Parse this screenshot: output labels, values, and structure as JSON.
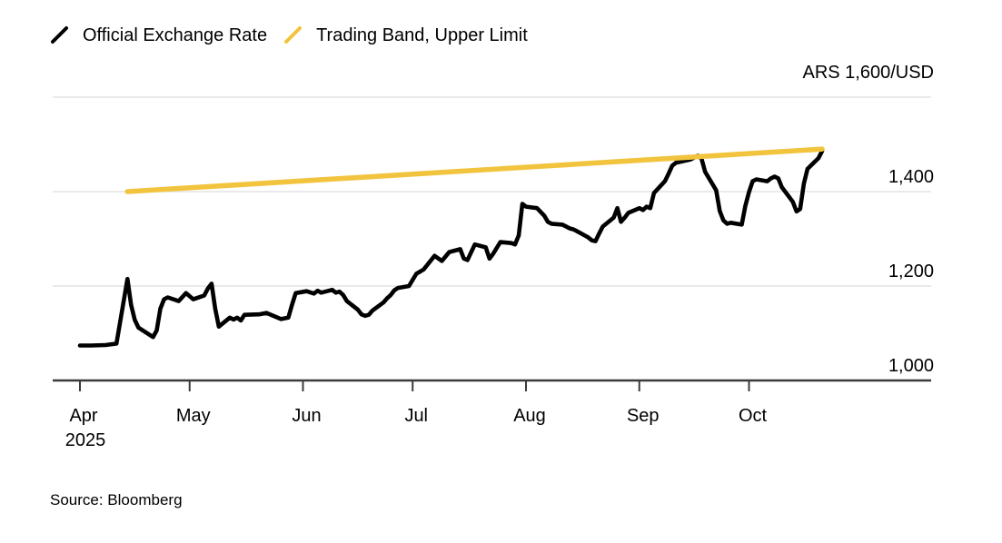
{
  "legend": {
    "items": [
      {
        "label": "Official Exchange Rate",
        "color": "#000000"
      },
      {
        "label": "Trading Band, Upper Limit",
        "color": "#F2C43D"
      }
    ]
  },
  "footer": {
    "source": "Source: Bloomberg"
  },
  "chart_data": {
    "type": "line",
    "title": "",
    "unit_label": "ARS 1,600/USD",
    "grid": true,
    "legend_position": "top-left",
    "x_axis": {
      "range": [
        "2025-04-01",
        "2025-10-21"
      ],
      "tick_dates": [
        "2025-04-01",
        "2025-05-01",
        "2025-06-01",
        "2025-07-01",
        "2025-08-01",
        "2025-09-01",
        "2025-10-01"
      ],
      "tick_labels": [
        "Apr",
        "May",
        "Jun",
        "Jul",
        "Aug",
        "Sep",
        "Oct"
      ],
      "year_label": "2025"
    },
    "y_axis": {
      "range": [
        1000,
        1600
      ],
      "grid_values": [
        1200,
        1400,
        1600
      ],
      "tick_labels": [
        [
          "1,000",
          1000
        ],
        [
          "1,200",
          1200
        ],
        [
          "1,400",
          1400
        ]
      ],
      "unit": "ARS per USD"
    },
    "series": [
      {
        "name": "Official Exchange Rate",
        "color": "#000000",
        "points": [
          [
            "2025-04-01",
            1074
          ],
          [
            "2025-04-04",
            1074
          ],
          [
            "2025-04-08",
            1075
          ],
          [
            "2025-04-11",
            1078
          ],
          [
            "2025-04-14",
            1215
          ],
          [
            "2025-04-15",
            1160
          ],
          [
            "2025-04-16",
            1128
          ],
          [
            "2025-04-17",
            1112
          ],
          [
            "2025-04-21",
            1092
          ],
          [
            "2025-04-22",
            1106
          ],
          [
            "2025-04-23",
            1152
          ],
          [
            "2025-04-24",
            1172
          ],
          [
            "2025-04-25",
            1176
          ],
          [
            "2025-04-28",
            1168
          ],
          [
            "2025-04-30",
            1185
          ],
          [
            "2025-05-02",
            1172
          ],
          [
            "2025-05-05",
            1180
          ],
          [
            "2025-05-06",
            1195
          ],
          [
            "2025-05-07",
            1205
          ],
          [
            "2025-05-08",
            1152
          ],
          [
            "2025-05-09",
            1114
          ],
          [
            "2025-05-12",
            1133
          ],
          [
            "2025-05-13",
            1129
          ],
          [
            "2025-05-14",
            1133
          ],
          [
            "2025-05-15",
            1127
          ],
          [
            "2025-05-16",
            1139
          ],
          [
            "2025-05-20",
            1140
          ],
          [
            "2025-05-22",
            1143
          ],
          [
            "2025-05-26",
            1130
          ],
          [
            "2025-05-28",
            1133
          ],
          [
            "2025-05-29",
            1160
          ],
          [
            "2025-05-30",
            1185
          ],
          [
            "2025-06-02",
            1189
          ],
          [
            "2025-06-04",
            1184
          ],
          [
            "2025-06-05",
            1190
          ],
          [
            "2025-06-06",
            1186
          ],
          [
            "2025-06-09",
            1192
          ],
          [
            "2025-06-10",
            1186
          ],
          [
            "2025-06-11",
            1188
          ],
          [
            "2025-06-12",
            1181
          ],
          [
            "2025-06-13",
            1168
          ],
          [
            "2025-06-16",
            1150
          ],
          [
            "2025-06-17",
            1140
          ],
          [
            "2025-06-18",
            1137
          ],
          [
            "2025-06-19",
            1139
          ],
          [
            "2025-06-20",
            1148
          ],
          [
            "2025-06-23",
            1165
          ],
          [
            "2025-06-24",
            1174
          ],
          [
            "2025-06-25",
            1181
          ],
          [
            "2025-06-26",
            1191
          ],
          [
            "2025-06-27",
            1196
          ],
          [
            "2025-06-30",
            1200
          ],
          [
            "2025-07-02",
            1226
          ],
          [
            "2025-07-04",
            1235
          ],
          [
            "2025-07-07",
            1264
          ],
          [
            "2025-07-09",
            1253
          ],
          [
            "2025-07-11",
            1272
          ],
          [
            "2025-07-14",
            1278
          ],
          [
            "2025-07-15",
            1258
          ],
          [
            "2025-07-16",
            1255
          ],
          [
            "2025-07-18",
            1288
          ],
          [
            "2025-07-21",
            1282
          ],
          [
            "2025-07-22",
            1258
          ],
          [
            "2025-07-23",
            1268
          ],
          [
            "2025-07-25",
            1293
          ],
          [
            "2025-07-28",
            1291
          ],
          [
            "2025-07-29",
            1288
          ],
          [
            "2025-07-30",
            1307
          ],
          [
            "2025-07-31",
            1374
          ],
          [
            "2025-08-01",
            1368
          ],
          [
            "2025-08-04",
            1365
          ],
          [
            "2025-08-06",
            1349
          ],
          [
            "2025-08-07",
            1336
          ],
          [
            "2025-08-08",
            1332
          ],
          [
            "2025-08-11",
            1330
          ],
          [
            "2025-08-13",
            1322
          ],
          [
            "2025-08-14",
            1320
          ],
          [
            "2025-08-15",
            1316
          ],
          [
            "2025-08-18",
            1303
          ],
          [
            "2025-08-19",
            1297
          ],
          [
            "2025-08-20",
            1295
          ],
          [
            "2025-08-21",
            1311
          ],
          [
            "2025-08-22",
            1326
          ],
          [
            "2025-08-25",
            1345
          ],
          [
            "2025-08-26",
            1365
          ],
          [
            "2025-08-27",
            1336
          ],
          [
            "2025-08-28",
            1345
          ],
          [
            "2025-08-29",
            1355
          ],
          [
            "2025-09-01",
            1365
          ],
          [
            "2025-09-02",
            1361
          ],
          [
            "2025-09-03",
            1368
          ],
          [
            "2025-09-04",
            1365
          ],
          [
            "2025-09-05",
            1397
          ],
          [
            "2025-09-08",
            1422
          ],
          [
            "2025-09-09",
            1438
          ],
          [
            "2025-09-10",
            1455
          ],
          [
            "2025-09-11",
            1461
          ],
          [
            "2025-09-15",
            1468
          ],
          [
            "2025-09-17",
            1476
          ],
          [
            "2025-09-18",
            1470
          ],
          [
            "2025-09-19",
            1442
          ],
          [
            "2025-09-22",
            1403
          ],
          [
            "2025-09-23",
            1359
          ],
          [
            "2025-09-24",
            1339
          ],
          [
            "2025-09-25",
            1332
          ],
          [
            "2025-09-26",
            1334
          ],
          [
            "2025-09-29",
            1330
          ],
          [
            "2025-09-30",
            1370
          ],
          [
            "2025-10-01",
            1399
          ],
          [
            "2025-10-02",
            1422
          ],
          [
            "2025-10-03",
            1426
          ],
          [
            "2025-10-06",
            1422
          ],
          [
            "2025-10-07",
            1428
          ],
          [
            "2025-10-08",
            1432
          ],
          [
            "2025-10-09",
            1428
          ],
          [
            "2025-10-10",
            1409
          ],
          [
            "2025-10-13",
            1378
          ],
          [
            "2025-10-14",
            1358
          ],
          [
            "2025-10-15",
            1363
          ],
          [
            "2025-10-16",
            1417
          ],
          [
            "2025-10-17",
            1448
          ],
          [
            "2025-10-20",
            1471
          ],
          [
            "2025-10-21",
            1486
          ]
        ]
      },
      {
        "name": "Trading Band, Upper Limit",
        "color": "#F2C43D",
        "points": [
          [
            "2025-04-14",
            1400
          ],
          [
            "2025-10-21",
            1490
          ]
        ]
      }
    ]
  }
}
